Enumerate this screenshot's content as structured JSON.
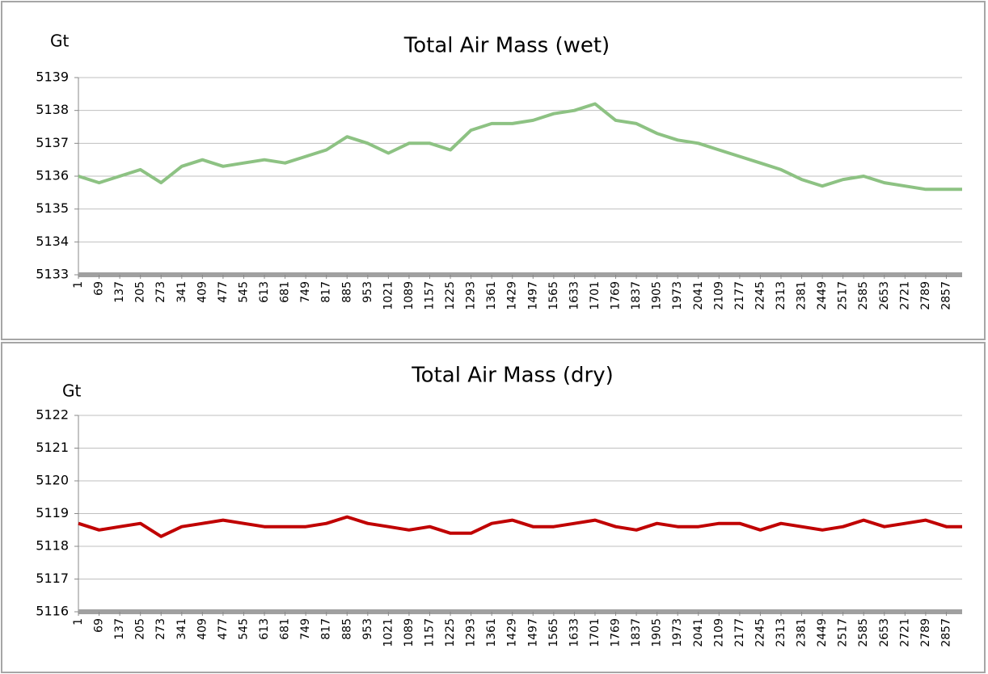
{
  "chart_data": [
    {
      "type": "line",
      "title": "Total Air Mass (wet)",
      "y_label": "Gt",
      "x": [
        1,
        69,
        137,
        205,
        273,
        341,
        409,
        477,
        545,
        613,
        681,
        749,
        817,
        885,
        953,
        1021,
        1089,
        1157,
        1225,
        1293,
        1361,
        1429,
        1497,
        1565,
        1633,
        1701,
        1769,
        1837,
        1905,
        1973,
        2041,
        2109,
        2177,
        2245,
        2313,
        2381,
        2449,
        2517,
        2585,
        2653,
        2721,
        2789,
        2857,
        2909
      ],
      "series": [
        {
          "color": "#8dc283",
          "values": [
            5136.0,
            5135.8,
            5136.0,
            5136.2,
            5135.8,
            5136.3,
            5136.5,
            5136.3,
            5136.4,
            5136.5,
            5136.4,
            5136.6,
            5136.8,
            5137.2,
            5137.0,
            5136.7,
            5137.0,
            5137.0,
            5136.8,
            5137.4,
            5137.6,
            5137.6,
            5137.7,
            5137.9,
            5138.0,
            5138.2,
            5137.7,
            5137.6,
            5137.3,
            5137.1,
            5137.0,
            5136.8,
            5136.6,
            5136.4,
            5136.2,
            5135.9,
            5135.7,
            5135.9,
            5136.0,
            5135.8,
            5135.7,
            5135.6,
            5135.6,
            5135.6
          ]
        }
      ],
      "xlim": [
        1,
        2909
      ],
      "xticks": [
        1,
        69,
        137,
        205,
        273,
        341,
        409,
        477,
        545,
        613,
        681,
        749,
        817,
        885,
        953,
        1021,
        1089,
        1157,
        1225,
        1293,
        1361,
        1429,
        1497,
        1565,
        1633,
        1701,
        1769,
        1837,
        1905,
        1973,
        2041,
        2109,
        2177,
        2245,
        2313,
        2381,
        2449,
        2517,
        2585,
        2653,
        2721,
        2789,
        2857
      ],
      "ylim": [
        5133,
        5139
      ],
      "yticks": [
        5133,
        5134,
        5135,
        5136,
        5137,
        5138,
        5139
      ],
      "grid": true
    },
    {
      "type": "line",
      "title": "Total Air Mass (dry)",
      "y_label": "Gt",
      "x": [
        1,
        69,
        137,
        205,
        273,
        341,
        409,
        477,
        545,
        613,
        681,
        749,
        817,
        885,
        953,
        1021,
        1089,
        1157,
        1225,
        1293,
        1361,
        1429,
        1497,
        1565,
        1633,
        1701,
        1769,
        1837,
        1905,
        1973,
        2041,
        2109,
        2177,
        2245,
        2313,
        2381,
        2449,
        2517,
        2585,
        2653,
        2721,
        2789,
        2857,
        2909
      ],
      "series": [
        {
          "color": "#c00000",
          "values": [
            5118.7,
            5118.5,
            5118.6,
            5118.7,
            5118.3,
            5118.6,
            5118.7,
            5118.8,
            5118.7,
            5118.6,
            5118.6,
            5118.6,
            5118.7,
            5118.9,
            5118.7,
            5118.6,
            5118.5,
            5118.6,
            5118.4,
            5118.4,
            5118.7,
            5118.8,
            5118.6,
            5118.6,
            5118.7,
            5118.8,
            5118.6,
            5118.5,
            5118.7,
            5118.6,
            5118.6,
            5118.7,
            5118.7,
            5118.5,
            5118.7,
            5118.6,
            5118.5,
            5118.6,
            5118.8,
            5118.6,
            5118.7,
            5118.8,
            5118.6,
            5118.6
          ]
        }
      ],
      "xlim": [
        1,
        2909
      ],
      "xticks": [
        1,
        69,
        137,
        205,
        273,
        341,
        409,
        477,
        545,
        613,
        681,
        749,
        817,
        885,
        953,
        1021,
        1089,
        1157,
        1225,
        1293,
        1361,
        1429,
        1497,
        1565,
        1633,
        1701,
        1769,
        1837,
        1905,
        1973,
        2041,
        2109,
        2177,
        2245,
        2313,
        2381,
        2449,
        2517,
        2585,
        2653,
        2721,
        2789,
        2857
      ],
      "ylim": [
        5116,
        5122
      ],
      "yticks": [
        5116,
        5117,
        5118,
        5119,
        5120,
        5121,
        5122
      ],
      "grid": true
    }
  ]
}
